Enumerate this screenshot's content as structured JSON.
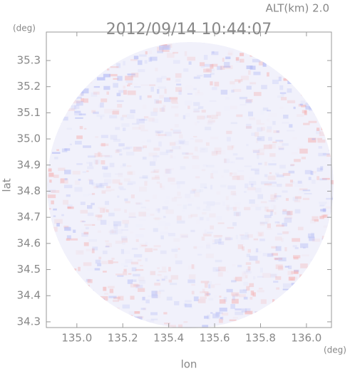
{
  "chart_data": {
    "type": "radar-map",
    "title": "2012/09/14 10:44:07",
    "subtitle": "ALT(km) 2.0",
    "x_label": "lon",
    "x_unit": "(deg)",
    "y_label": "lat",
    "y_unit": "(deg)",
    "xlim": [
      134.867,
      136.109
    ],
    "ylim": [
      34.278,
      35.409
    ],
    "xticks": [
      {
        "value": 135.0,
        "label": "135.0"
      },
      135.2,
      135.4,
      135.6,
      135.8,
      {
        "value": 136.0,
        "label": "136.0"
      }
    ],
    "yticks": [
      34.3,
      34.4,
      34.5,
      34.6,
      34.7,
      34.8,
      34.9,
      {
        "value": 35.0,
        "label": "35.0"
      },
      35.1,
      35.2,
      35.3
    ]
  }
}
